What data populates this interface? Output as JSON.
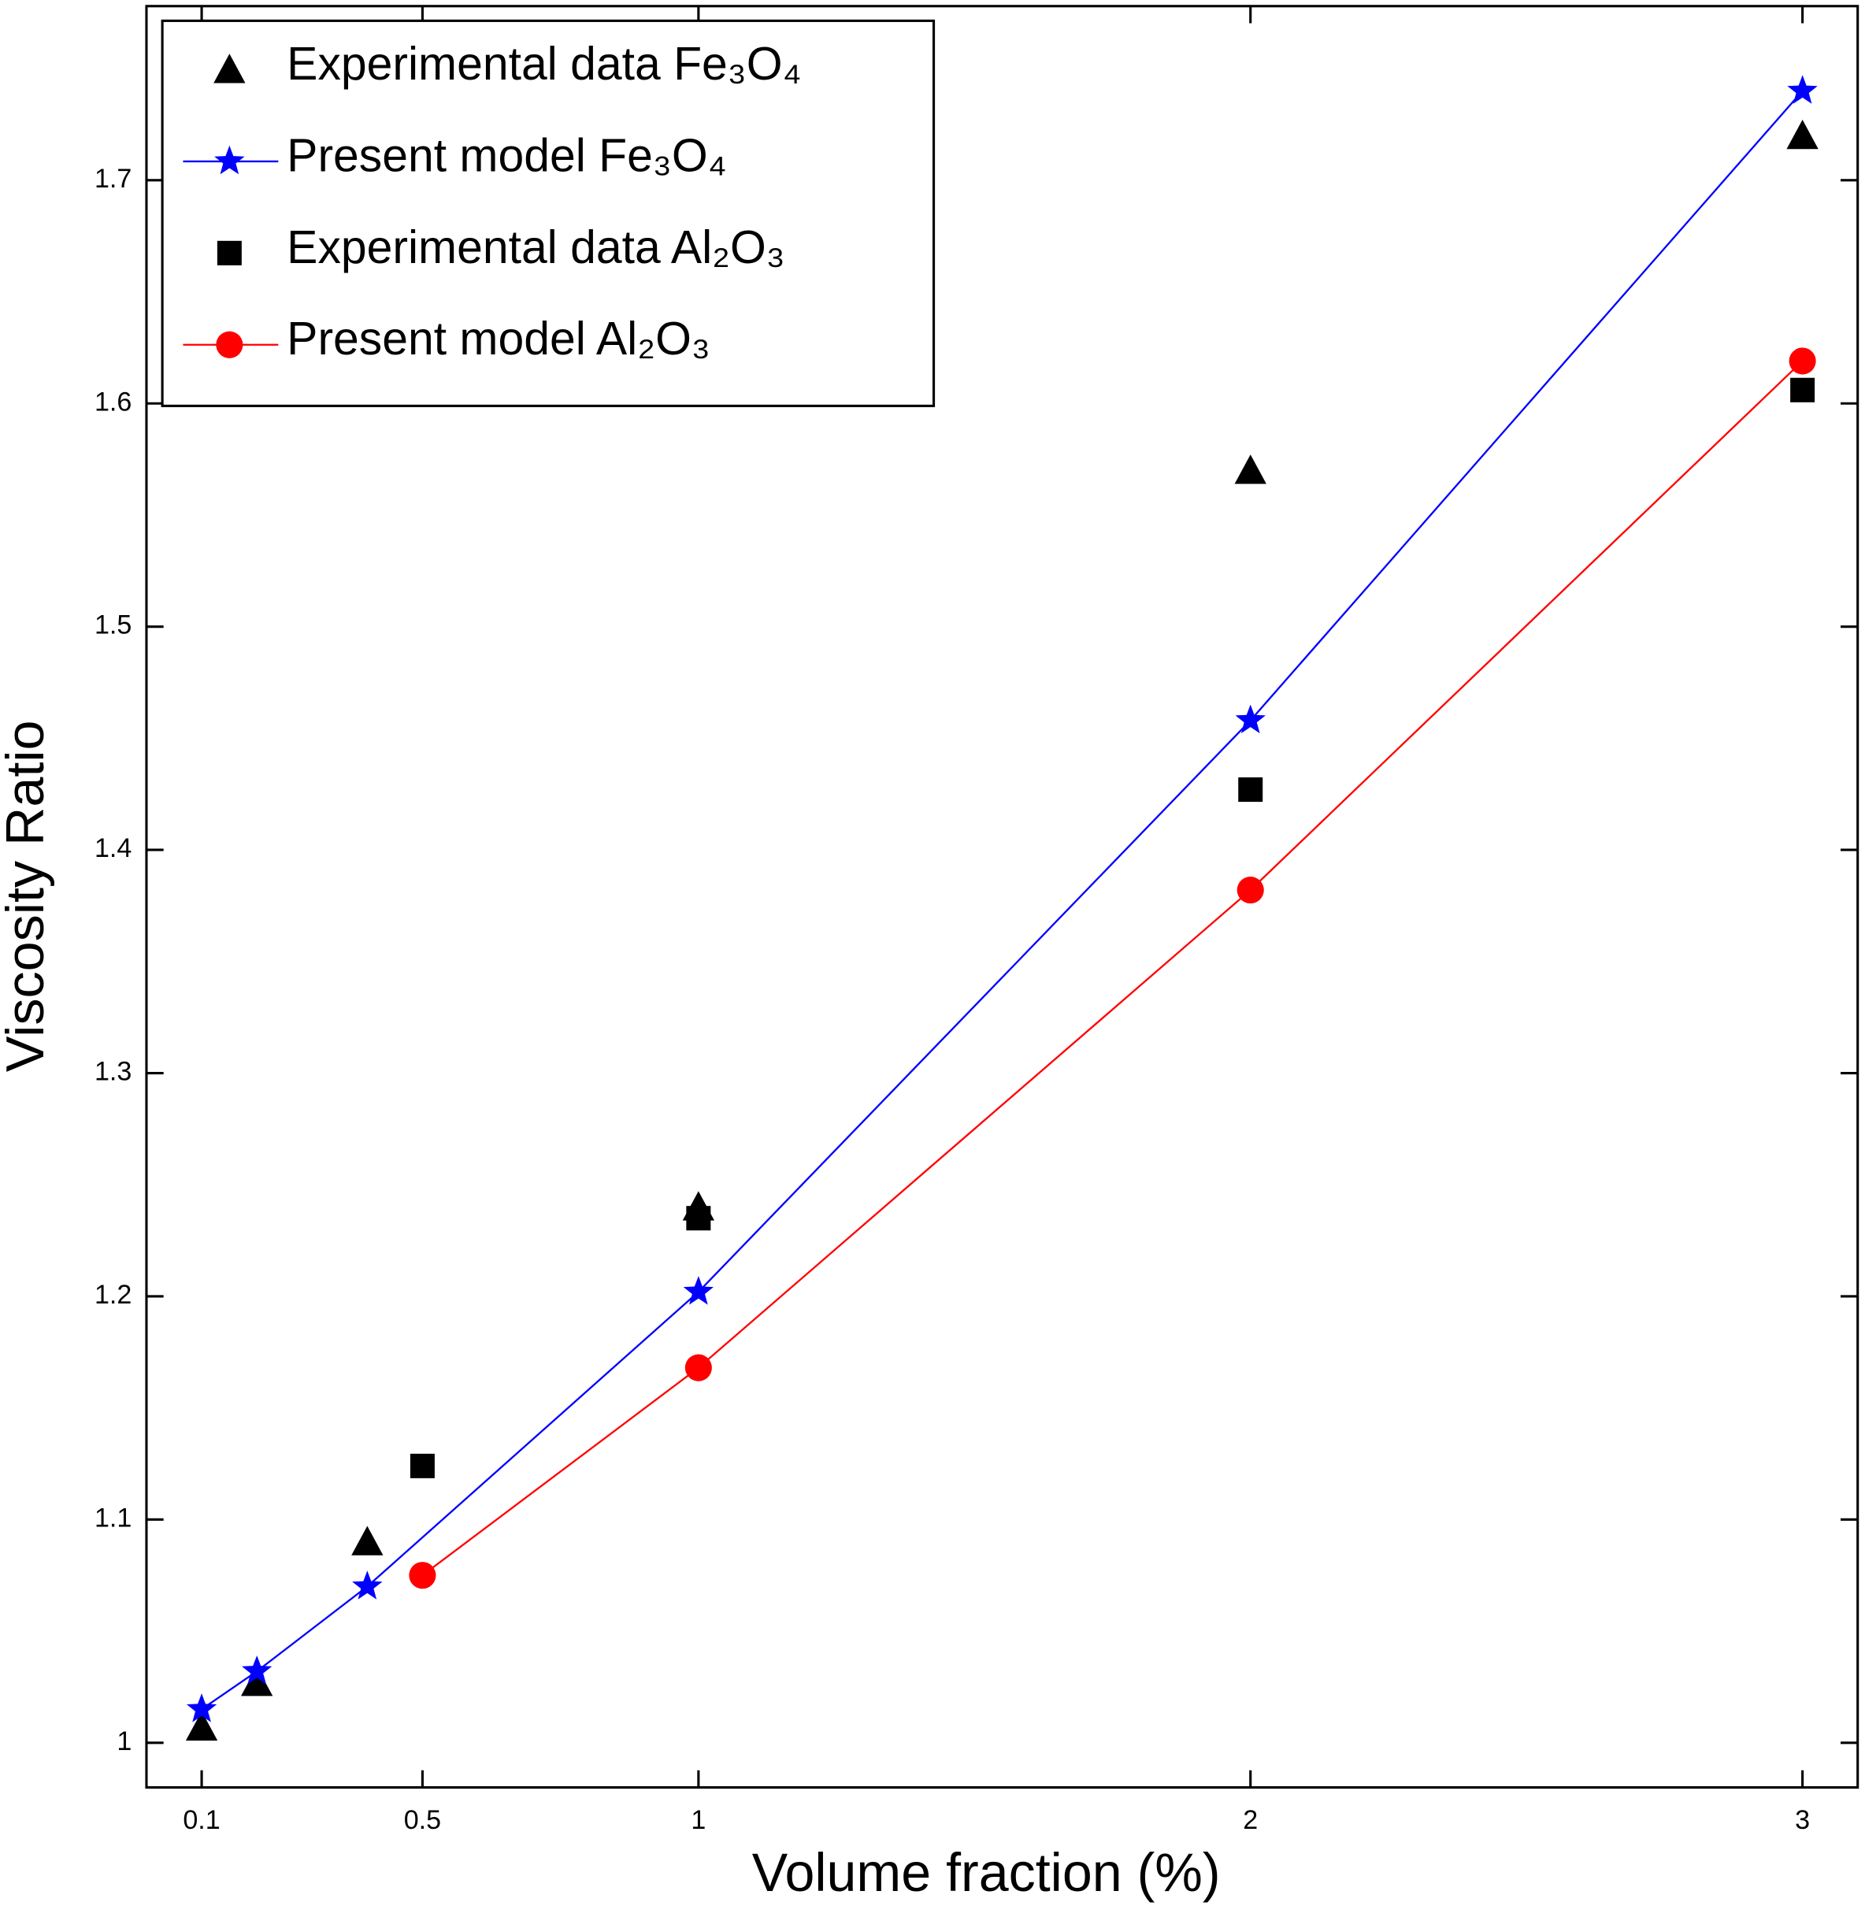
{
  "chart_data": {
    "type": "line",
    "x_label": "Volume fraction (%)",
    "y_label": "Viscosity Ratio",
    "xlim": [
      0,
      3.1
    ],
    "ylim": [
      0.98,
      1.778
    ],
    "xticks": [
      0.1,
      0.5,
      1,
      2,
      3
    ],
    "yticks": [
      1,
      1.1,
      1.2,
      1.3,
      1.4,
      1.5,
      1.6,
      1.7
    ],
    "legend": "upper-left",
    "series": [
      {
        "name": "Experimental data Fe₃O₄",
        "color": "#000000",
        "marker": "triangle",
        "line": false,
        "x": [
          0.1,
          0.2,
          0.4,
          1,
          2,
          3
        ],
        "values": [
          1.007,
          1.027,
          1.09,
          1.24,
          1.57,
          1.72
        ]
      },
      {
        "name": "Present model Fe₃O₄",
        "color": "#0000ff",
        "marker": "star",
        "line": true,
        "x": [
          0.1,
          0.2,
          0.4,
          1,
          2,
          3
        ],
        "values": [
          1.015,
          1.032,
          1.07,
          1.202,
          1.458,
          1.74
        ]
      },
      {
        "name": "Experimental data Al₂O₃",
        "color": "#000000",
        "marker": "square",
        "line": false,
        "x": [
          0.5,
          1,
          2,
          3
        ],
        "values": [
          1.124,
          1.235,
          1.427,
          1.606
        ]
      },
      {
        "name": "Present model Al₂O₃",
        "color": "#ff0000",
        "marker": "circle",
        "line": true,
        "x": [
          0.5,
          1,
          2,
          3
        ],
        "values": [
          1.075,
          1.168,
          1.382,
          1.619
        ]
      }
    ]
  }
}
